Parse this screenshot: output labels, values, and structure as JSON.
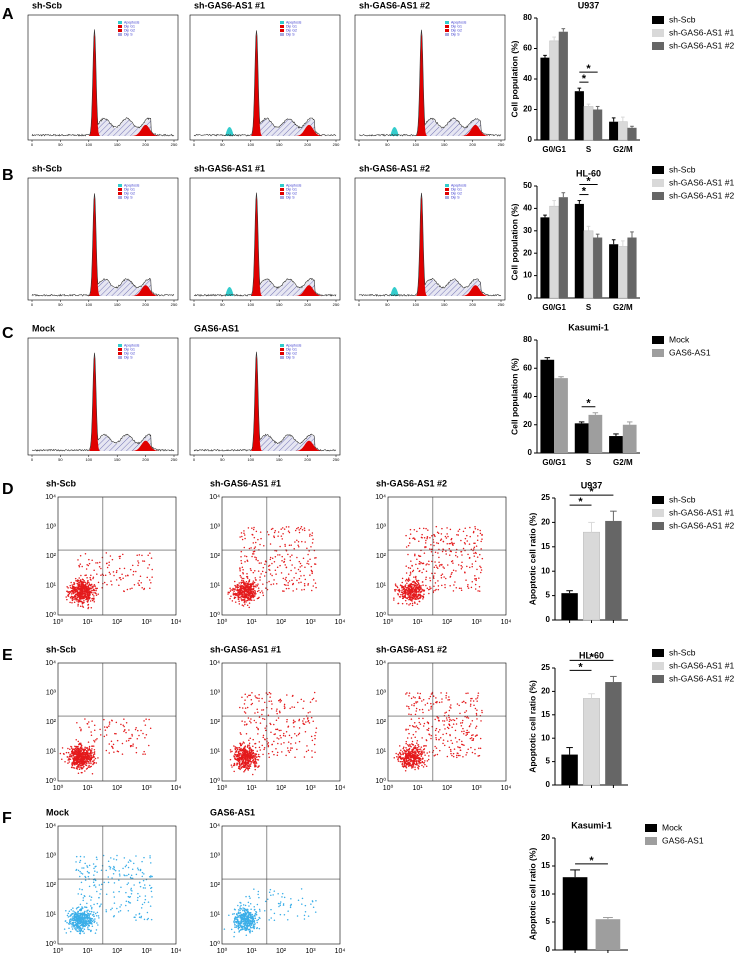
{
  "panels": [
    {
      "label": "A",
      "kind": "histogram",
      "plots": [
        {
          "title": "sh-Scb"
        },
        {
          "title": "sh-GAS6-AS1 #1"
        },
        {
          "title": "sh-GAS6-AS1 #2"
        }
      ]
    },
    {
      "label": "B",
      "kind": "histogram",
      "plots": [
        {
          "title": "sh-Scb"
        },
        {
          "title": "sh-GAS6-AS1 #1"
        },
        {
          "title": "sh-GAS6-AS1 #2"
        }
      ]
    },
    {
      "label": "C",
      "kind": "histogram",
      "plots": [
        {
          "title": "Mock"
        },
        {
          "title": "GAS6-AS1"
        }
      ]
    },
    {
      "label": "D",
      "kind": "scatter",
      "dot_color": "#e41a1c",
      "plots": [
        {
          "title": "sh-Scb"
        },
        {
          "title": "sh-GAS6-AS1 #1"
        },
        {
          "title": "sh-GAS6-AS1 #2"
        }
      ]
    },
    {
      "label": "E",
      "kind": "scatter",
      "dot_color": "#e41a1c",
      "plots": [
        {
          "title": "sh-Scb"
        },
        {
          "title": "sh-GAS6-AS1 #1"
        },
        {
          "title": "sh-GAS6-AS1 #2"
        }
      ]
    },
    {
      "label": "F",
      "kind": "scatter",
      "dot_color": "#3aaee8",
      "plots": [
        {
          "title": "Mock"
        },
        {
          "title": "GAS6-AS1"
        }
      ]
    }
  ],
  "histogram_legend": [
    "Apoptosis",
    "Dip G1",
    "Dip G2",
    "Dip S"
  ],
  "histogram_xticks": [
    0,
    50,
    100,
    150,
    200,
    250
  ],
  "flow_axis_ticks": [
    "10⁰",
    "10¹",
    "10²",
    "10³",
    "10⁴"
  ],
  "chart_data": [
    {
      "type": "bar",
      "title": "U937",
      "y_label": "Cell population (%)",
      "categories": [
        "G0/G1",
        "S",
        "G2/M"
      ],
      "series": [
        {
          "name": "sh-Scb",
          "color": "#000000",
          "values": [
            54,
            32,
            12
          ],
          "errors": [
            1.5,
            2,
            2.5
          ]
        },
        {
          "name": "sh-GAS6-AS1 #1",
          "color": "#d9d9d9",
          "values": [
            65,
            22,
            12
          ],
          "errors": [
            2.5,
            1.5,
            3
          ]
        },
        {
          "name": "sh-GAS6-AS1 #2",
          "color": "#666666",
          "values": [
            71,
            20,
            8
          ],
          "errors": [
            2,
            2,
            1
          ]
        }
      ],
      "ylim": [
        0,
        80
      ],
      "yticks": [
        0,
        20,
        40,
        60,
        80
      ],
      "significance": [
        {
          "text": "*",
          "category": 1,
          "from": 0,
          "to": 1
        },
        {
          "text": "*",
          "category": 1,
          "from": 0,
          "to": 2
        }
      ]
    },
    {
      "type": "bar",
      "title": "HL-60",
      "y_label": "Cell population (%)",
      "categories": [
        "G0/G1",
        "S",
        "G2/M"
      ],
      "series": [
        {
          "name": "sh-Scb",
          "color": "#000000",
          "values": [
            36,
            42,
            24
          ],
          "errors": [
            1,
            1.5,
            2
          ]
        },
        {
          "name": "sh-GAS6-AS1 #1",
          "color": "#d9d9d9",
          "values": [
            41,
            30,
            23
          ],
          "errors": [
            2.5,
            2,
            2.5
          ]
        },
        {
          "name": "sh-GAS6-AS1 #2",
          "color": "#666666",
          "values": [
            45,
            27,
            27
          ],
          "errors": [
            2,
            1.5,
            2.5
          ]
        }
      ],
      "ylim": [
        0,
        50
      ],
      "yticks": [
        0,
        10,
        20,
        30,
        40,
        50
      ],
      "significance": [
        {
          "text": "*",
          "category": 1,
          "from": 0,
          "to": 1
        },
        {
          "text": "*",
          "category": 1,
          "from": 0,
          "to": 2
        }
      ]
    },
    {
      "type": "bar",
      "title": "Kasumi-1",
      "y_label": "Cell population (%)",
      "categories": [
        "G0/G1",
        "S",
        "G2/M"
      ],
      "series": [
        {
          "name": "Mock",
          "color": "#000000",
          "values": [
            66,
            21,
            12
          ],
          "errors": [
            1.5,
            1,
            1.5
          ]
        },
        {
          "name": "GAS6-AS1",
          "color": "#9e9e9e",
          "values": [
            53,
            27,
            20
          ],
          "errors": [
            1,
            1.5,
            2
          ]
        }
      ],
      "ylim": [
        0,
        80
      ],
      "yticks": [
        0,
        20,
        40,
        60,
        80
      ],
      "significance": [
        {
          "text": "*",
          "category": 1,
          "from": 0,
          "to": 1
        }
      ]
    },
    {
      "type": "bar",
      "title": "U937",
      "y_label": "Apoptotic cell ratio (%)",
      "categories": [
        null
      ],
      "series": [
        {
          "name": "sh-Scb",
          "color": "#000000",
          "values": [
            5.5
          ],
          "errors": [
            0.5
          ]
        },
        {
          "name": "sh-GAS6-AS1 #1",
          "color": "#d9d9d9",
          "values": [
            18
          ],
          "errors": [
            2
          ]
        },
        {
          "name": "sh-GAS6-AS1 #2",
          "color": "#666666",
          "values": [
            20.3
          ],
          "errors": [
            2
          ]
        }
      ],
      "ylim": [
        0,
        25
      ],
      "yticks": [
        0,
        5,
        10,
        15,
        20,
        25
      ],
      "significance": [
        {
          "text": "*",
          "category": 0,
          "from": 0,
          "to": 1
        },
        {
          "text": "*",
          "category": 0,
          "from": 0,
          "to": 2
        }
      ]
    },
    {
      "type": "bar",
      "title": "HL-60",
      "y_label": "Apoptotic cell ratio (%)",
      "categories": [
        null
      ],
      "series": [
        {
          "name": "sh-Scb",
          "color": "#000000",
          "values": [
            6.5
          ],
          "errors": [
            1.5
          ]
        },
        {
          "name": "sh-GAS6-AS1 #1",
          "color": "#d9d9d9",
          "values": [
            18.5
          ],
          "errors": [
            1
          ]
        },
        {
          "name": "sh-GAS6-AS1 #2",
          "color": "#666666",
          "values": [
            22
          ],
          "errors": [
            1.2
          ]
        }
      ],
      "ylim": [
        0,
        25
      ],
      "yticks": [
        0,
        5,
        10,
        15,
        20,
        25
      ],
      "significance": [
        {
          "text": "*",
          "category": 0,
          "from": 0,
          "to": 1
        },
        {
          "text": "*",
          "category": 0,
          "from": 0,
          "to": 2
        }
      ]
    },
    {
      "type": "bar",
      "title": "Kasumi-1",
      "y_label": "Apoptotic cell ratio (%)",
      "categories": [
        null
      ],
      "series": [
        {
          "name": "Mock",
          "color": "#000000",
          "values": [
            13
          ],
          "errors": [
            1.3
          ]
        },
        {
          "name": "GAS6-AS1",
          "color": "#9e9e9e",
          "values": [
            5.5
          ],
          "errors": [
            0.3
          ]
        }
      ],
      "ylim": [
        0,
        20
      ],
      "yticks": [
        0,
        5,
        10,
        15,
        20
      ],
      "significance": [
        {
          "text": "*",
          "category": 0,
          "from": 0,
          "to": 1
        }
      ]
    }
  ]
}
